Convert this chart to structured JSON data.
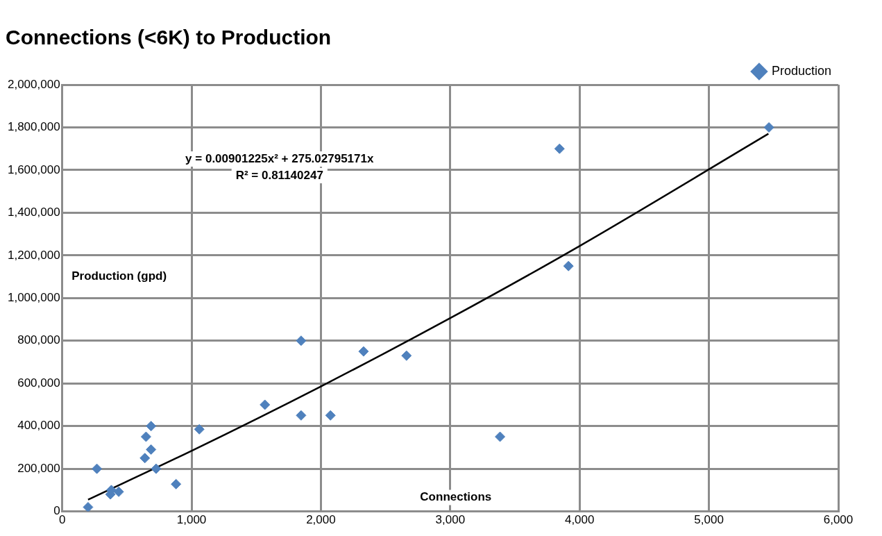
{
  "chart_data": {
    "type": "scatter",
    "title": "Connections (<6K) to Production",
    "xlabel": "Connections",
    "ylabel": "Production (gpd)",
    "annotations": [
      "y = 0.00901225x² + 275.02795171x",
      "R² = 0.81140247"
    ],
    "xlim": [
      0,
      6000
    ],
    "xticks": [
      0,
      {
        "value": 1000,
        "label": "1,000"
      },
      {
        "value": 2000,
        "label": "2,000"
      },
      {
        "value": 3000,
        "label": "3,000"
      },
      {
        "value": 4000,
        "label": "4,000"
      },
      {
        "value": 5000,
        "label": "5,000"
      },
      {
        "value": 6000,
        "label": "6,000"
      }
    ],
    "ylim": [
      0,
      2000000
    ],
    "yticks": [
      0,
      {
        "value": 200000,
        "label": "200,000"
      },
      {
        "value": 400000,
        "label": "400,000"
      },
      {
        "value": 600000,
        "label": "600,000"
      },
      {
        "value": 800000,
        "label": "800,000"
      },
      {
        "value": 1000000,
        "label": "1,000,000"
      },
      {
        "value": 1200000,
        "label": "1,200,000"
      },
      {
        "value": 1400000,
        "label": "1,400,000"
      },
      {
        "value": 1600000,
        "label": "1,600,000"
      },
      {
        "value": 1800000,
        "label": "1,800,000"
      },
      {
        "value": 2000000,
        "label": "2,000,000"
      }
    ],
    "grid": true,
    "legend": "top right",
    "marker": "diamond",
    "series": [
      {
        "name": "Production",
        "color": "#4f81bd",
        "x": [
          200,
          268,
          373,
          380,
          437,
          639,
          648,
          687,
          687,
          726,
          880,
          1060,
          1567,
          1847,
          1847,
          2074,
          2330,
          2662,
          3385,
          3845,
          3914,
          5464
        ],
        "values": [
          20000,
          200000,
          80000,
          100000,
          92000,
          250000,
          350000,
          400000,
          290000,
          200000,
          128000,
          385000,
          500000,
          450000,
          800000,
          450000,
          750000,
          730000,
          350000,
          1700000,
          1150000,
          1800000
        ]
      },
      {
        "type": "line",
        "color": "#000000",
        "marker": "none",
        "x": [
          200,
          1000,
          2000,
          3000,
          4000,
          5460
        ],
        "values": [
          55000,
          284000,
          586000,
          906000,
          1244000,
          1770000
        ]
      }
    ]
  }
}
